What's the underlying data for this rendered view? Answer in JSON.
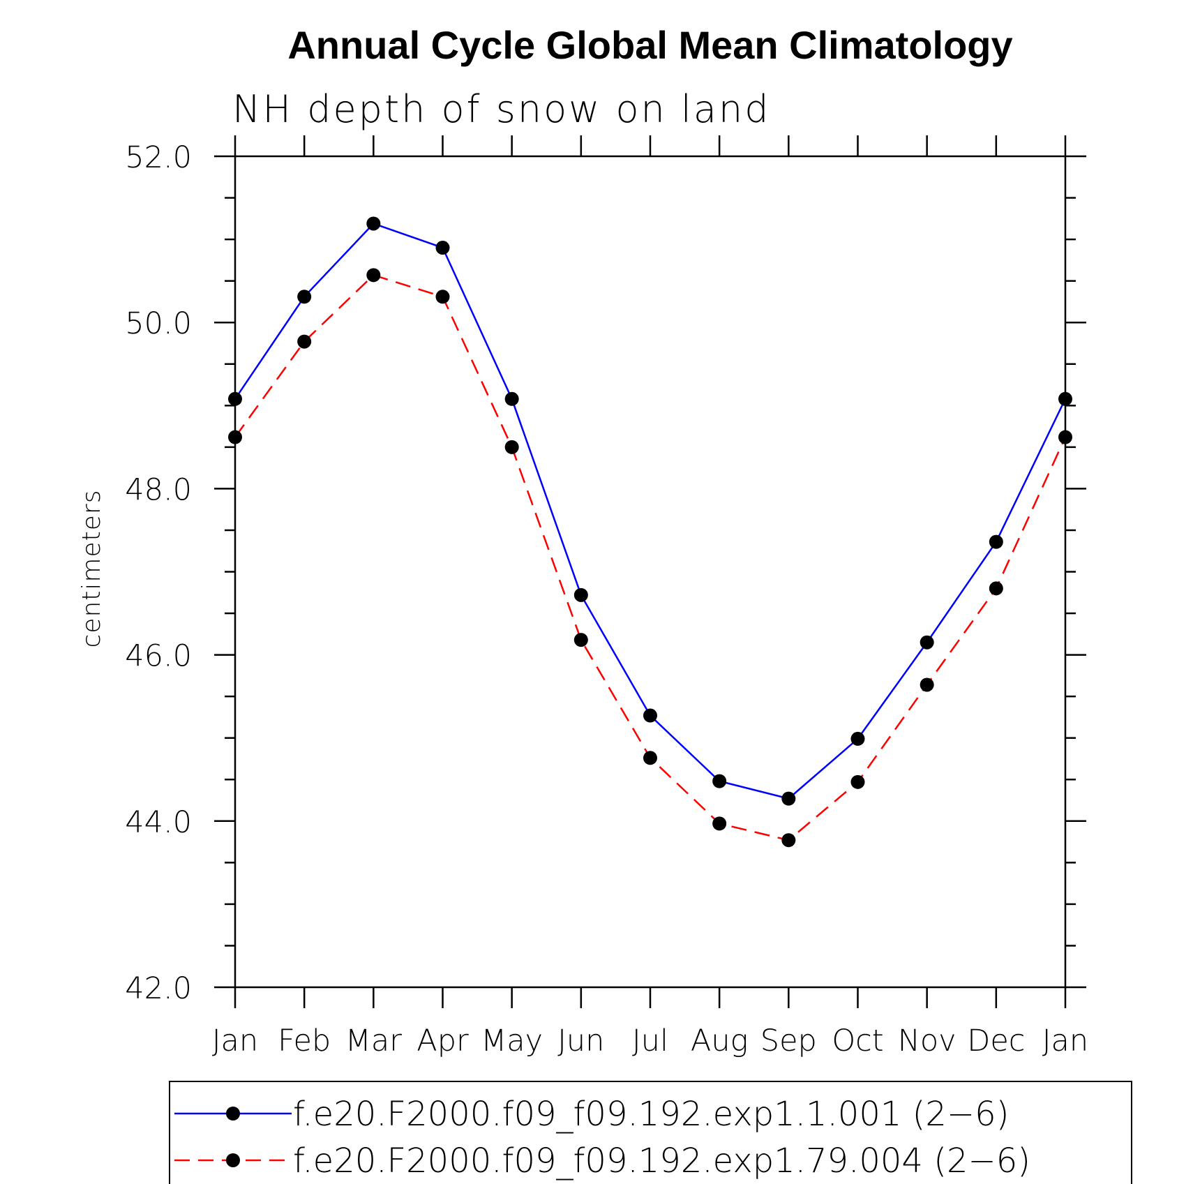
{
  "chart_data": {
    "type": "line",
    "title": "Annual Cycle Global Mean Climatology",
    "subtitle": "NH depth of snow on land",
    "ylabel": "centimeters",
    "xlabel": "",
    "categories": [
      "Jan",
      "Feb",
      "Mar",
      "Apr",
      "May",
      "Jun",
      "Jul",
      "Aug",
      "Sep",
      "Oct",
      "Nov",
      "Dec",
      "Jan"
    ],
    "ylim": [
      42.0,
      52.0
    ],
    "yticks": [
      "52.0",
      "50.0",
      "48.0",
      "46.0",
      "44.0",
      "42.0"
    ],
    "series": [
      {
        "name": "f.e20.F2000.f09_f09.192.exp1.1.001 (2−6)",
        "color": "#0000ff",
        "dash": "solid",
        "values": [
          49.08,
          50.31,
          51.19,
          50.9,
          49.08,
          46.72,
          45.27,
          44.48,
          44.27,
          44.99,
          46.15,
          47.36,
          49.08
        ]
      },
      {
        "name": "f.e20.F2000.f09_f09.192.exp1.79.004 (2−6)",
        "color": "#ff0000",
        "dash": "dashed",
        "values": [
          48.62,
          49.77,
          50.57,
          50.31,
          48.5,
          46.18,
          44.76,
          43.97,
          43.77,
          44.47,
          45.64,
          46.8,
          48.62
        ]
      }
    ],
    "marker": "filled-circle",
    "marker_color": "#000000",
    "legend_position": "bottom"
  }
}
